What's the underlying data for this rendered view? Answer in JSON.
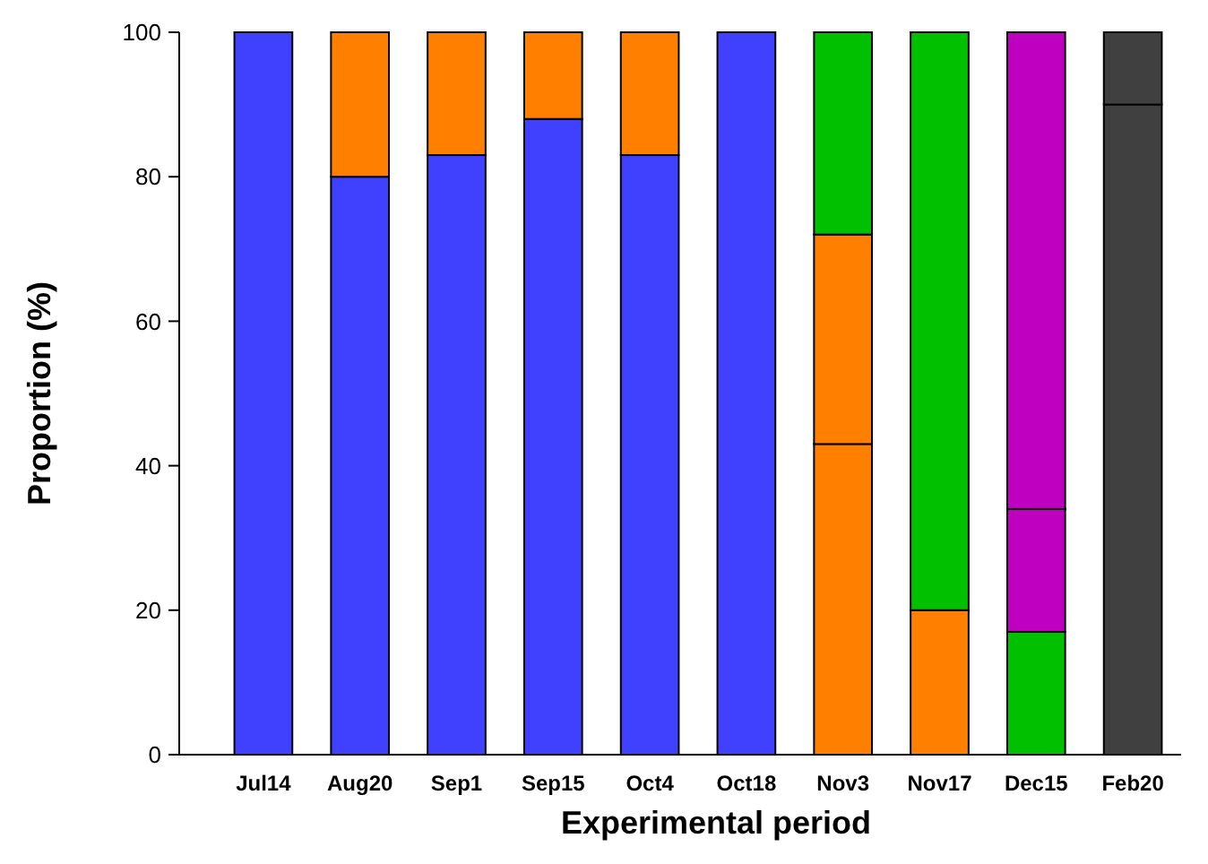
{
  "chart_data": {
    "type": "bar",
    "stacked": true,
    "xlabel": "Experimental period",
    "ylabel": "Proportion (%)",
    "categories": [
      "Jul14",
      "Aug20",
      "Sep1",
      "Sep15",
      "Oct4",
      "Oct18",
      "Nov3",
      "Nov17",
      "Dec15",
      "Feb20"
    ],
    "series": [
      {
        "color": "#4040ff",
        "values": [
          100,
          80,
          83,
          88,
          83,
          100,
          null,
          null,
          null,
          null
        ]
      },
      {
        "color": "#ff8000",
        "values": [
          null,
          20,
          17,
          12,
          17,
          null,
          43,
          20,
          null,
          null
        ]
      },
      {
        "color": "#ff8000",
        "values": [
          null,
          null,
          null,
          null,
          null,
          null,
          29,
          null,
          null,
          null
        ]
      },
      {
        "color": "#00c000",
        "values": [
          null,
          null,
          null,
          null,
          null,
          null,
          28,
          80,
          17,
          null
        ]
      },
      {
        "color": "#c000c0",
        "values": [
          null,
          null,
          null,
          null,
          null,
          null,
          null,
          null,
          17,
          null
        ]
      },
      {
        "color": "#c000c0",
        "values": [
          null,
          null,
          null,
          null,
          null,
          null,
          null,
          null,
          66,
          null
        ]
      },
      {
        "color": "#404040",
        "values": [
          null,
          null,
          null,
          null,
          null,
          null,
          null,
          null,
          null,
          90
        ]
      },
      {
        "color": "#404040",
        "values": [
          null,
          null,
          null,
          null,
          null,
          null,
          null,
          null,
          null,
          10
        ]
      }
    ],
    "ylim": [
      0,
      100
    ],
    "yticks": [
      0,
      20,
      40,
      60,
      80,
      100
    ],
    "grid": false
  }
}
